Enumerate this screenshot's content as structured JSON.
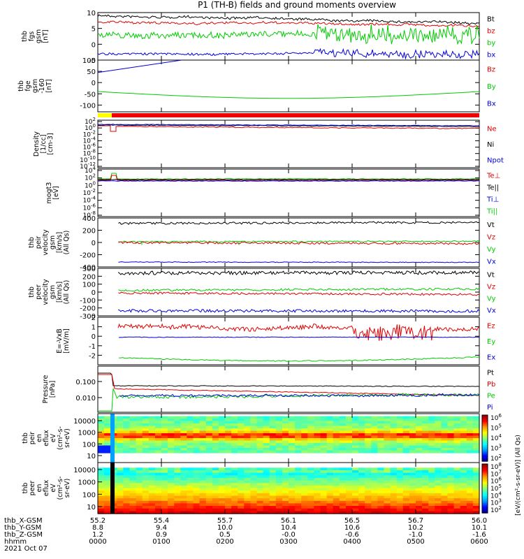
{
  "title": "P1  (TH-B) fields and ground moments overview",
  "colors": {
    "black": "#000000",
    "red": "#e00000",
    "green": "#00cc00",
    "blue": "#0000dd",
    "yellow": "#ffff00",
    "bar_red": "#ee0000"
  },
  "chart_data": [
    {
      "type": "line",
      "panel": "fgs_gsm",
      "ylabel_lines": [
        "thb",
        "fgs",
        "gsm",
        "[nT]"
      ],
      "ylim": [
        -5,
        10
      ],
      "yticks": [
        "10",
        "5",
        "0",
        "-5"
      ],
      "series": [
        {
          "name": "Bt",
          "color": "black",
          "level": 9
        },
        {
          "name": "bz",
          "color": "red",
          "level": 7
        },
        {
          "name": "by",
          "color": "green",
          "level": 3
        },
        {
          "name": "bx",
          "color": "blue",
          "level": -3
        }
      ]
    },
    {
      "type": "line",
      "panel": "fge_gsm_160",
      "ylabel_lines": [
        "thb",
        "fge",
        "gsm",
        "-160",
        "[nT]"
      ],
      "ylim": [
        -130,
        100
      ],
      "yticks": [
        "100",
        "50",
        "0",
        "-50",
        "-100"
      ],
      "series": [
        {
          "name": "Bz",
          "color": "red"
        },
        {
          "name": "By",
          "color": "green",
          "level": -40
        },
        {
          "name": "Bx",
          "color": "blue",
          "start": 45
        }
      ]
    },
    {
      "type": "line",
      "panel": "density",
      "ylabel_lines": [
        "Density",
        "[1/cc]",
        "[cm-3]"
      ],
      "ylim_log": [
        -12,
        2
      ],
      "yticks": [
        "10^2",
        "10^0",
        "10^-2",
        "10^-4",
        "10^-6",
        "10^-8",
        "10^-10",
        "10^-12"
      ],
      "series": [
        {
          "name": "Ne",
          "color": "red"
        },
        {
          "name": "Ni",
          "color": "black"
        },
        {
          "name": "Npot",
          "color": "blue"
        }
      ]
    },
    {
      "type": "line",
      "panel": "temperature",
      "ylabel_lines": [
        "mogt3",
        "[eV]"
      ],
      "ylim_log": [
        -8,
        4
      ],
      "yticks": [
        "10^4",
        "10^2",
        "10^0",
        "10^-2",
        "10^-4",
        "10^-6",
        "10^-8"
      ],
      "series": [
        {
          "name": "Te⊥",
          "color": "red"
        },
        {
          "name": "Te||",
          "color": "black"
        },
        {
          "name": "Ti⊥",
          "color": "blue"
        },
        {
          "name": "Ti||",
          "color": "green"
        }
      ]
    },
    {
      "type": "line",
      "panel": "peir_velocity",
      "ylabel_lines": [
        "thb",
        "peir",
        "velocity",
        "gsm",
        "[km/s]",
        "(All Qs)"
      ],
      "ylim": [
        -400,
        400
      ],
      "yticks": [
        "400",
        "200",
        "0",
        "-200",
        "-400"
      ],
      "series": [
        {
          "name": "Vt",
          "color": "black",
          "level": 320
        },
        {
          "name": "Vz",
          "color": "red",
          "level": 0
        },
        {
          "name": "Vy",
          "color": "green",
          "level": 10
        },
        {
          "name": "Vx",
          "color": "blue",
          "level": -320
        }
      ]
    },
    {
      "type": "line",
      "panel": "peer_velocity",
      "ylabel_lines": [
        "thb",
        "peer",
        "velocity",
        "gsm",
        "[km/s]",
        "(All Qs)"
      ],
      "ylim": [
        -300,
        300
      ],
      "yticks": [
        "300",
        "200",
        "100",
        "0",
        "-100",
        "-200",
        "-300"
      ],
      "series": [
        {
          "name": "Vt",
          "color": "black",
          "level": 230
        },
        {
          "name": "Vz",
          "color": "red",
          "level": 0
        },
        {
          "name": "Vy",
          "color": "green",
          "level": 30
        },
        {
          "name": "Vx",
          "color": "blue",
          "level": -240
        }
      ]
    },
    {
      "type": "line",
      "panel": "e_field",
      "ylabel_lines": [
        "E=-VxB",
        "[mV/m]"
      ],
      "ylim": [
        -3,
        2
      ],
      "yticks": [
        "2",
        "1",
        "0",
        "-1",
        "-2"
      ],
      "series": [
        {
          "name": "Ez",
          "color": "red",
          "level": 0.9
        },
        {
          "name": "Ey",
          "color": "green",
          "level": -2.2
        },
        {
          "name": "Ex",
          "color": "blue",
          "level": -0.1
        }
      ]
    },
    {
      "type": "line",
      "panel": "pressure",
      "ylabel_lines": [
        "Pressure",
        "[nPa]"
      ],
      "ylim_log": [
        -3,
        -0.5
      ],
      "yticks": [
        "0.100",
        "0.010"
      ],
      "series": [
        {
          "name": "Pt",
          "color": "black",
          "level": 0.05
        },
        {
          "name": "Pb",
          "color": "red",
          "level": 0.04
        },
        {
          "name": "Pe",
          "color": "green",
          "level": 0.008
        },
        {
          "name": "Pi",
          "color": "blue",
          "level": 0.008
        }
      ]
    },
    {
      "type": "heatmap",
      "panel": "peir_spectrogram",
      "ylabel_lines": [
        "thb",
        "peir",
        "en",
        "eflux",
        "eV",
        "(cm^2-s-",
        "sr-eV)"
      ],
      "yticks": [
        "10000",
        "1000",
        "100",
        "10"
      ]
    },
    {
      "type": "heatmap",
      "panel": "peer_spectrogram",
      "ylabel_lines": [
        "thb",
        "peer",
        "en",
        "eflux",
        "eV",
        "(cm^2-s-",
        "sr-eV)"
      ],
      "yticks": [
        "10000",
        "1000",
        "100",
        "10"
      ]
    }
  ],
  "colorbar": {
    "upper_ticks": [
      "10^6",
      "10^5",
      "10^4",
      "10^3",
      "10^2"
    ],
    "lower_ticks": [
      "10^8",
      "10^7",
      "10^6",
      "10^5",
      "10^4",
      "10^3",
      "10^2"
    ],
    "label": "[eV/(cm^2-s-sr-eV)] (All Qs)"
  },
  "x_axis": {
    "rows": [
      {
        "label": "thb_X-GSM",
        "values": [
          "55.2",
          "55.4",
          "55.7",
          "56.1",
          "56.5",
          "56.7",
          "56.0"
        ]
      },
      {
        "label": "thb_Y-GSM",
        "values": [
          "8.8",
          "9.4",
          "10.0",
          "10.4",
          "10.6",
          "10.2",
          "10.1"
        ]
      },
      {
        "label": "thb_Z-GSM",
        "values": [
          "1.2",
          "0.9",
          "0.5",
          "-0.0",
          "-0.6",
          "-1.0",
          "-1.6"
        ]
      },
      {
        "label": "hhmm",
        "values": [
          "0000",
          "0100",
          "0200",
          "0300",
          "0400",
          "0500",
          "0600"
        ]
      }
    ],
    "date": "2021 Oct 07"
  }
}
